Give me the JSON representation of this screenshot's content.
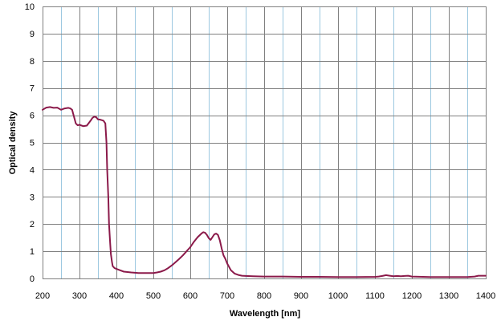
{
  "chart_data": {
    "type": "line",
    "title": "",
    "xlabel": "Wavelength [nm]",
    "ylabel": "Optical density",
    "xlim": [
      200,
      1400
    ],
    "ylim": [
      0,
      10
    ],
    "x_ticks": [
      200,
      300,
      400,
      500,
      600,
      700,
      800,
      900,
      1000,
      1100,
      1200,
      1300,
      1400
    ],
    "y_ticks": [
      0,
      1,
      2,
      3,
      4,
      5,
      6,
      7,
      8,
      9,
      10
    ],
    "x_minor_step": 50,
    "grid": true,
    "legend": "none",
    "colors": {
      "line": "#8B1A4A",
      "major_grid": "#808080",
      "minor_grid": "#9CC8E0",
      "frame": "#808080"
    },
    "series": [
      {
        "x": [
          200,
          210,
          220,
          230,
          240,
          250,
          260,
          270,
          275,
          280,
          285,
          290,
          295,
          300,
          310,
          320,
          330,
          335,
          340,
          345,
          350,
          355,
          360,
          365,
          370,
          373,
          375,
          378,
          380,
          383,
          385,
          388,
          390,
          395,
          400,
          410,
          420,
          440,
          460,
          480,
          500,
          510,
          520,
          530,
          540,
          550,
          560,
          570,
          580,
          590,
          600,
          610,
          620,
          630,
          635,
          640,
          645,
          650,
          655,
          660,
          665,
          670,
          675,
          680,
          685,
          690,
          695,
          700,
          710,
          720,
          730,
          740,
          750,
          770,
          800,
          850,
          900,
          950,
          1000,
          1050,
          1100,
          1110,
          1120,
          1130,
          1140,
          1150,
          1160,
          1170,
          1180,
          1190,
          1200,
          1250,
          1300,
          1350,
          1370,
          1380,
          1400
        ],
        "y": [
          6.2,
          6.28,
          6.3,
          6.27,
          6.28,
          6.2,
          6.25,
          6.27,
          6.25,
          6.2,
          5.95,
          5.7,
          5.63,
          5.65,
          5.6,
          5.62,
          5.8,
          5.9,
          5.95,
          5.93,
          5.85,
          5.84,
          5.82,
          5.8,
          5.7,
          5.0,
          4.0,
          3.0,
          2.0,
          1.3,
          0.9,
          0.6,
          0.45,
          0.38,
          0.35,
          0.3,
          0.25,
          0.22,
          0.2,
          0.2,
          0.2,
          0.22,
          0.25,
          0.3,
          0.38,
          0.48,
          0.6,
          0.72,
          0.85,
          1.0,
          1.15,
          1.35,
          1.52,
          1.65,
          1.7,
          1.68,
          1.6,
          1.48,
          1.42,
          1.52,
          1.62,
          1.65,
          1.6,
          1.4,
          1.1,
          0.85,
          0.72,
          0.55,
          0.3,
          0.18,
          0.13,
          0.1,
          0.09,
          0.08,
          0.07,
          0.07,
          0.06,
          0.06,
          0.05,
          0.05,
          0.06,
          0.07,
          0.09,
          0.12,
          0.1,
          0.08,
          0.09,
          0.08,
          0.09,
          0.1,
          0.07,
          0.05,
          0.05,
          0.05,
          0.07,
          0.1,
          0.1
        ]
      }
    ]
  }
}
